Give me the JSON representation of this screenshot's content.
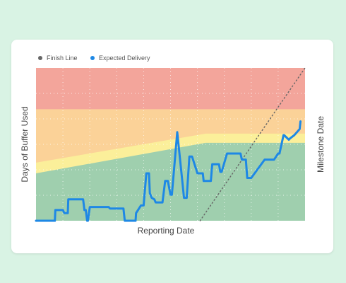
{
  "colors": {
    "background": "#d9f3e4",
    "zone_red": "#f3a59b",
    "zone_orange": "#fbd298",
    "zone_yellow": "#fbef9a",
    "zone_green": "#9fcfae",
    "expected_line": "#1e88e5",
    "finish_line": "#666666"
  },
  "chart_data": {
    "type": "line",
    "title": "",
    "xlabel": "Reporting Date",
    "ylabel": "Days of Buffer Used",
    "y2label": "Milestone Date",
    "legend": {
      "placement": "top-left",
      "entries": [
        {
          "label": "Finish Line",
          "color": "#666666",
          "icon": "dot-icon"
        },
        {
          "label": "Expected Delivery",
          "color": "#1e88e5",
          "icon": "dot-icon"
        }
      ]
    },
    "xlim": [
      0,
      100
    ],
    "ylim": [
      0,
      100
    ],
    "grid": true,
    "zones": [
      {
        "name": "red",
        "from": 73,
        "to": 100
      },
      {
        "name": "orange",
        "upper": [
          [
            0,
            73
          ],
          [
            100,
            73
          ]
        ]
      },
      {
        "name": "yellow",
        "upper": [
          [
            0,
            38
          ],
          [
            63,
            57
          ],
          [
            100,
            57
          ]
        ]
      },
      {
        "name": "green",
        "upper": [
          [
            0,
            31
          ],
          [
            63,
            51
          ],
          [
            100,
            51
          ]
        ]
      }
    ],
    "series": [
      {
        "name": "Finish Line",
        "style": "dotted",
        "x": [
          61,
          100
        ],
        "y": [
          0,
          100
        ]
      },
      {
        "name": "Expected Delivery",
        "style": "solid",
        "x": [
          0,
          7,
          7.2,
          10,
          10.5,
          11.8,
          12,
          17.5,
          18,
          18.5,
          19,
          19.3,
          20,
          27,
          27.5,
          32.5,
          33,
          37,
          37.2,
          39,
          40,
          41,
          42,
          42.3,
          43,
          44,
          44.5,
          47,
          48,
          49,
          50,
          50.5,
          52.5,
          55,
          56,
          57,
          58,
          60,
          62,
          62.3,
          65,
          65.5,
          68,
          68.5,
          69,
          71,
          71.4,
          76,
          76.5,
          78,
          78.5,
          79,
          80,
          85,
          85.5,
          88,
          88.5,
          90,
          90.5,
          92,
          92.2,
          94,
          94.5,
          96,
          96.5,
          98,
          98.3
        ],
        "y": [
          0,
          0,
          7,
          7,
          5,
          5,
          14,
          14,
          7,
          7,
          0,
          0,
          9,
          9,
          8,
          8,
          0,
          0,
          5,
          10,
          10,
          31,
          31,
          18,
          15,
          14,
          12,
          12,
          26,
          26,
          17,
          17,
          58,
          15,
          15,
          42,
          42,
          31,
          31,
          26,
          26,
          37,
          37,
          32,
          32,
          44,
          44,
          44,
          40,
          40,
          28,
          28,
          28,
          40,
          40,
          40,
          40,
          44,
          44,
          56,
          56,
          53,
          54,
          56,
          57,
          60,
          65
        ]
      }
    ]
  }
}
